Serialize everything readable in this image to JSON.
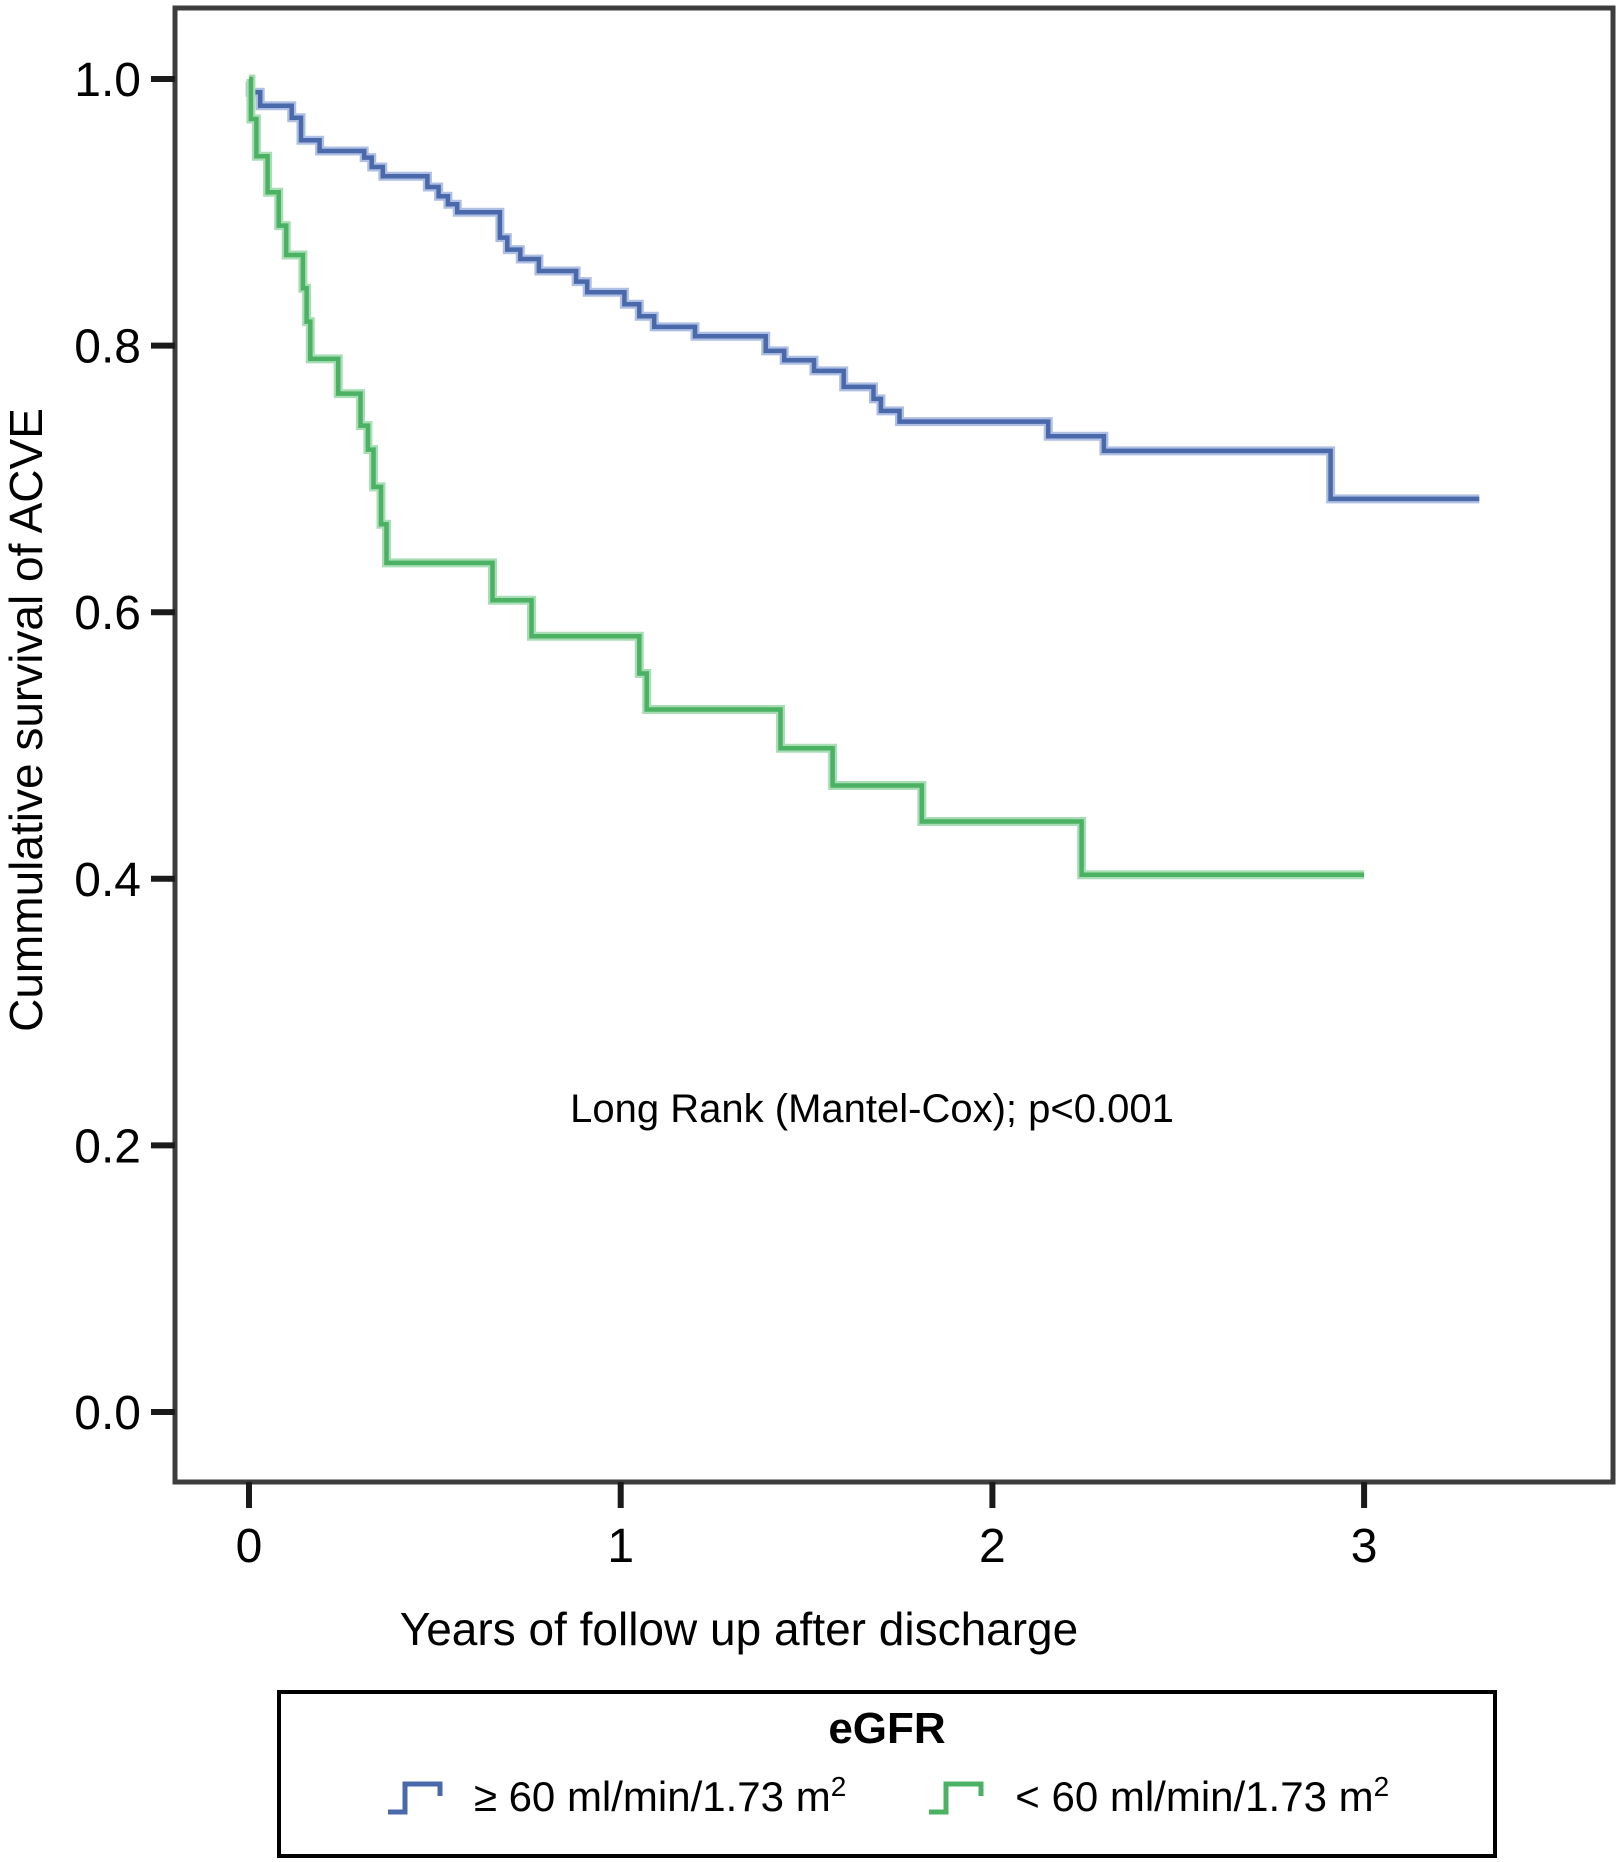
{
  "figure": {
    "y_axis_label": "Cummulative survival of ACVE",
    "x_axis_label": "Years of follow up after discharge",
    "annotation": "Long Rank (Mantel-Cox); p<0.001"
  },
  "legend": {
    "title": "eGFR",
    "entries": [
      {
        "label": "≥ 60 ml/min/1.73 m",
        "sup": "2",
        "color": "#4a69ab",
        "halo": "#aebfe3"
      },
      {
        "label": "< 60 ml/min/1.73 m",
        "sup": "2",
        "color": "#4bb264",
        "halo": "#a8ddb5"
      }
    ]
  },
  "chart_data": {
    "type": "line",
    "subtype": "kaplan-meier-step",
    "title": "",
    "xlabel": "Years of follow up after discharge",
    "ylabel": "Cummulative survival of ACVE",
    "annotation": "Long Rank (Mantel-Cox); p<0.001",
    "xlim": [
      -0.2,
      3.67
    ],
    "ylim": [
      -0.05,
      1.05
    ],
    "grid": false,
    "legend_position": "bottom",
    "x_ticks": [
      {
        "label": "0",
        "value": 0
      },
      {
        "label": "1",
        "value": 1
      },
      {
        "label": "2",
        "value": 2
      },
      {
        "label": "3",
        "value": 3
      }
    ],
    "y_ticks": [
      {
        "label": "0.0",
        "value": 0.0
      },
      {
        "label": "0.2",
        "value": 0.2
      },
      {
        "label": "0.4",
        "value": 0.4
      },
      {
        "label": "0.6",
        "value": 0.6
      },
      {
        "label": "0.8",
        "value": 0.8
      },
      {
        "label": "1.0",
        "value": 1.0
      }
    ],
    "series": [
      {
        "name": "≥ 60 ml/min/1.73 m²",
        "color": "#4a69ab",
        "halo": "#aebfe3",
        "end_time": 3.31,
        "points": [
          [
            0.0,
            0.998
          ],
          [
            0.003,
            0.99
          ],
          [
            0.03,
            0.98
          ],
          [
            0.115,
            0.971
          ],
          [
            0.14,
            0.954
          ],
          [
            0.19,
            0.946
          ],
          [
            0.31,
            0.941
          ],
          [
            0.33,
            0.934
          ],
          [
            0.36,
            0.927
          ],
          [
            0.48,
            0.919
          ],
          [
            0.51,
            0.912
          ],
          [
            0.535,
            0.906
          ],
          [
            0.56,
            0.9
          ],
          [
            0.675,
            0.881
          ],
          [
            0.695,
            0.872
          ],
          [
            0.73,
            0.865
          ],
          [
            0.78,
            0.856
          ],
          [
            0.88,
            0.848
          ],
          [
            0.91,
            0.84
          ],
          [
            1.01,
            0.831
          ],
          [
            1.05,
            0.822
          ],
          [
            1.09,
            0.814
          ],
          [
            1.2,
            0.807
          ],
          [
            1.39,
            0.796
          ],
          [
            1.44,
            0.789
          ],
          [
            1.52,
            0.781
          ],
          [
            1.6,
            0.769
          ],
          [
            1.68,
            0.76
          ],
          [
            1.7,
            0.751
          ],
          [
            1.75,
            0.743
          ],
          [
            2.15,
            0.732
          ],
          [
            2.3,
            0.721
          ],
          [
            2.91,
            0.685
          ]
        ]
      },
      {
        "name": "< 60 ml/min/1.73 m²",
        "color": "#4bb264",
        "halo": "#a8ddb5",
        "end_time": 3.0,
        "points": [
          [
            0.0,
            1.0
          ],
          [
            0.005,
            0.97
          ],
          [
            0.02,
            0.942
          ],
          [
            0.05,
            0.915
          ],
          [
            0.08,
            0.89
          ],
          [
            0.1,
            0.868
          ],
          [
            0.145,
            0.843
          ],
          [
            0.155,
            0.818
          ],
          [
            0.165,
            0.79
          ],
          [
            0.24,
            0.764
          ],
          [
            0.3,
            0.74
          ],
          [
            0.32,
            0.722
          ],
          [
            0.335,
            0.694
          ],
          [
            0.355,
            0.666
          ],
          [
            0.37,
            0.637
          ],
          [
            0.655,
            0.609
          ],
          [
            0.76,
            0.582
          ],
          [
            1.05,
            0.554
          ],
          [
            1.07,
            0.527
          ],
          [
            1.43,
            0.498
          ],
          [
            1.57,
            0.47
          ],
          [
            1.81,
            0.443
          ],
          [
            2.24,
            0.403
          ]
        ]
      }
    ]
  }
}
